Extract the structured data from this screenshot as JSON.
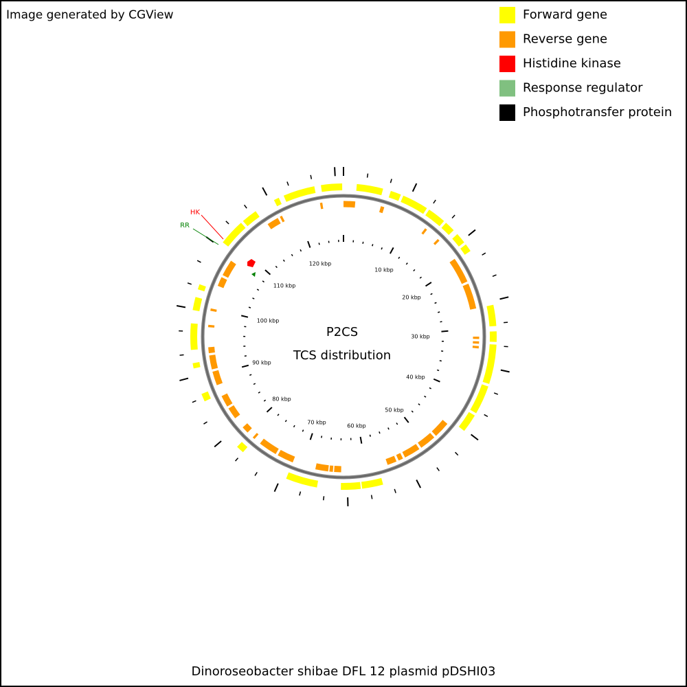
{
  "header": {
    "credit": "Image generated by CGView"
  },
  "legend": [
    {
      "label": "Forward gene",
      "color": "#ffff00"
    },
    {
      "label": "Reverse gene",
      "color": "#ff9900"
    },
    {
      "label": "Histidine kinase",
      "color": "#ff0000"
    },
    {
      "label": "Response regulator",
      "color": "#80c080"
    },
    {
      "label": "Phosphotransfer protein",
      "color": "#000000"
    }
  ],
  "annotations": [
    {
      "label": "HK",
      "color": "#ff0000"
    },
    {
      "label": "RR",
      "color": "#008000"
    }
  ],
  "ruler_labels": [
    "10 kbp",
    "20 kbp",
    "30 kbp",
    "40 kbp",
    "50 kbp",
    "60 kbp",
    "70 kbp",
    "80 kbp",
    "90 kbp",
    "100 kbp",
    "110 kbp",
    "120 kbp"
  ],
  "center_title": [
    "P2CS",
    "TCS distribution"
  ],
  "caption": "Dinoroseobacter shibae DFL 12 plasmid pDSHI03"
}
